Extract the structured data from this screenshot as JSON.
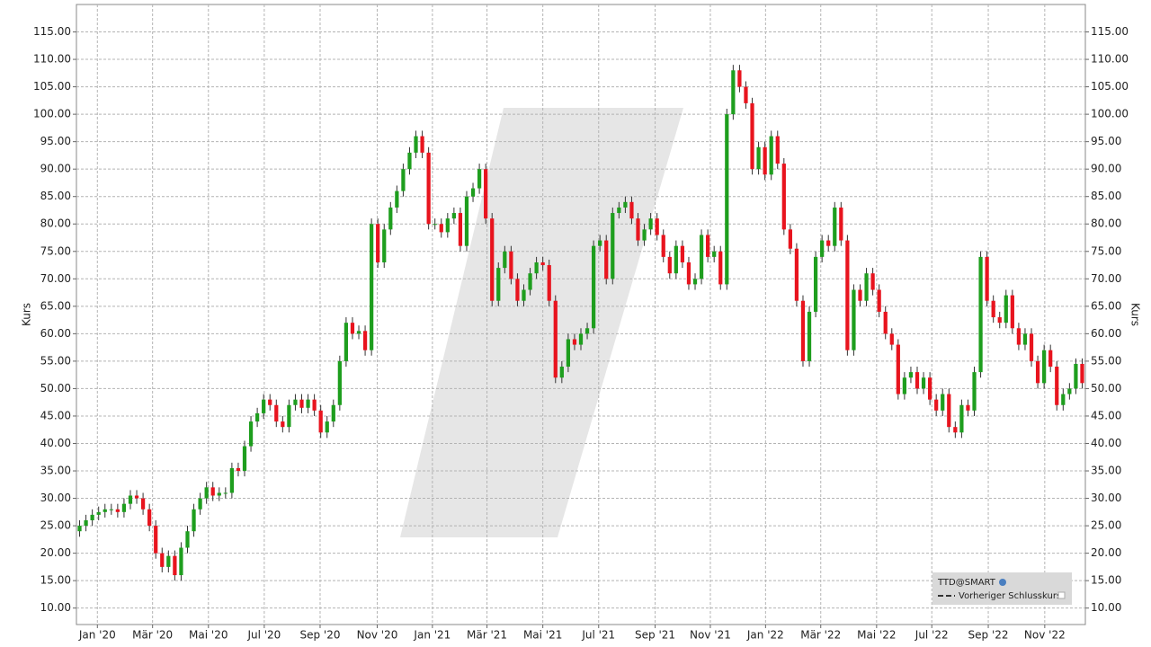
{
  "chart_data": {
    "type": "candlestick",
    "y_label": "Kurs",
    "y2_label": "Kurs",
    "legend": {
      "symbol": "TTD@SMART",
      "previous_close": "Vorheriger Schlusskurs",
      "corner": "lower right"
    },
    "up_color": "#1e9e1e",
    "down_color": "#e8141e",
    "grid": true,
    "xlim": [
      -0.5,
      158.5
    ],
    "ylim": [
      7,
      120
    ],
    "yticks": [
      {
        "value": 10,
        "label": "10.00"
      },
      {
        "value": 15,
        "label": "15.00"
      },
      {
        "value": 20,
        "label": "20.00"
      },
      {
        "value": 25,
        "label": "25.00"
      },
      {
        "value": 30,
        "label": "30.00"
      },
      {
        "value": 35,
        "label": "35.00"
      },
      {
        "value": 40,
        "label": "40.00"
      },
      {
        "value": 45,
        "label": "45.00"
      },
      {
        "value": 50,
        "label": "50.00"
      },
      {
        "value": 55,
        "label": "55.00"
      },
      {
        "value": 60,
        "label": "60.00"
      },
      {
        "value": 65,
        "label": "65.00"
      },
      {
        "value": 70,
        "label": "70.00"
      },
      {
        "value": 75,
        "label": "75.00"
      },
      {
        "value": 80,
        "label": "80.00"
      },
      {
        "value": 85,
        "label": "85.00"
      },
      {
        "value": 90,
        "label": "90.00"
      },
      {
        "value": 95,
        "label": "95.00"
      },
      {
        "value": 100,
        "label": "100.00"
      },
      {
        "value": 105,
        "label": "105.00"
      },
      {
        "value": 110,
        "label": "110.00"
      },
      {
        "value": 115,
        "label": "115.00"
      }
    ],
    "xticks": [
      {
        "value": 2.8,
        "label": "Jan '20"
      },
      {
        "value": 11.5,
        "label": "Mär '20"
      },
      {
        "value": 20.3,
        "label": "Mai '20"
      },
      {
        "value": 29.1,
        "label": "Jul '20"
      },
      {
        "value": 37.9,
        "label": "Sep '20"
      },
      {
        "value": 46.9,
        "label": "Nov '20"
      },
      {
        "value": 55.6,
        "label": "Jan '21"
      },
      {
        "value": 64.2,
        "label": "Mär '21"
      },
      {
        "value": 73,
        "label": "Mai '21"
      },
      {
        "value": 81.8,
        "label": "Jul '21"
      },
      {
        "value": 90.7,
        "label": "Sep '21"
      },
      {
        "value": 99.4,
        "label": "Nov '21"
      },
      {
        "value": 108.1,
        "label": "Jan '22"
      },
      {
        "value": 116.8,
        "label": "Mär '22"
      },
      {
        "value": 125.6,
        "label": "Mai '22"
      },
      {
        "value": 134.3,
        "label": "Jul '22"
      },
      {
        "value": 143.2,
        "label": "Sep '22"
      },
      {
        "value": 152.1,
        "label": "Nov '22"
      }
    ],
    "open": [
      24,
      25,
      26,
      27,
      27.5,
      28,
      28,
      27.5,
      29,
      30.5,
      30,
      28,
      25,
      20,
      17.5,
      19.5,
      16,
      21,
      24,
      28,
      30,
      32,
      30.5,
      31,
      31,
      35.5,
      35,
      39.5,
      44,
      45.5,
      48,
      47,
      44,
      43,
      47,
      48,
      46.5,
      48,
      46,
      42,
      44,
      47,
      55,
      62,
      60,
      60.5,
      57,
      80,
      73,
      79,
      83,
      86,
      90,
      93,
      96,
      93,
      80,
      80,
      78.5,
      81,
      82,
      76,
      85,
      86.5,
      90,
      81,
      66,
      72,
      75,
      70,
      66,
      68,
      71,
      73,
      72.5,
      66,
      52,
      54,
      59,
      58,
      60,
      61,
      76,
      77,
      70,
      82,
      83,
      84,
      81,
      77,
      79,
      81,
      78,
      74,
      71,
      76,
      73,
      69,
      70,
      78,
      74,
      75,
      69,
      100,
      108,
      105,
      102,
      90,
      94,
      89,
      96,
      91,
      79,
      75.5,
      66,
      55,
      64,
      74,
      77,
      76,
      83,
      77,
      57,
      68,
      66,
      71,
      68,
      64,
      60,
      58,
      49,
      52,
      53,
      50,
      52,
      48,
      46,
      49,
      43,
      42,
      47,
      46,
      53,
      74,
      66,
      63,
      62,
      67,
      61,
      58,
      60,
      55,
      51,
      57,
      54,
      47,
      49,
      50,
      54.5
    ],
    "high": [
      26,
      27,
      28,
      28.5,
      29,
      29,
      29,
      30,
      31.5,
      31.5,
      31,
      29,
      26,
      21,
      20.5,
      20.5,
      22,
      25,
      29,
      31,
      33,
      33,
      32,
      32,
      36.5,
      36.5,
      40.5,
      45,
      46.5,
      49,
      49,
      48,
      45,
      48,
      49,
      49,
      49,
      49,
      47,
      45,
      48,
      56,
      63,
      63,
      61.5,
      61.5,
      81,
      81,
      80,
      84,
      87,
      91,
      94,
      97,
      97,
      94,
      81,
      81,
      82,
      83,
      83,
      86,
      87.5,
      91,
      91,
      82,
      73,
      76,
      76,
      71,
      69,
      72,
      74,
      74,
      73.5,
      67,
      55,
      60,
      60,
      61,
      62,
      77,
      78,
      78,
      83,
      84,
      85,
      85,
      82,
      80,
      82,
      82,
      79,
      75,
      77,
      77,
      74,
      71,
      79,
      79,
      76,
      76,
      101,
      109,
      109,
      106,
      103,
      95,
      95,
      97,
      97,
      92,
      80,
      76.5,
      67,
      65,
      75,
      78,
      78,
      84,
      84,
      78,
      69,
      69,
      72,
      72,
      69,
      65,
      61,
      59,
      53,
      54,
      54,
      53,
      53,
      49,
      50,
      50,
      44,
      48,
      48,
      54,
      75,
      75,
      67,
      64,
      68,
      68,
      62,
      61,
      61,
      56,
      58,
      58,
      55,
      50,
      51,
      55.5,
      55.5
    ],
    "low": [
      23,
      24,
      25,
      26,
      26.5,
      27,
      26.5,
      26.5,
      28,
      29,
      27,
      24,
      19,
      16.5,
      16.5,
      15,
      15,
      20,
      23,
      27,
      29,
      29.5,
      29.5,
      30,
      30,
      34,
      34,
      38.5,
      43,
      44.5,
      46,
      43,
      42,
      42,
      46,
      45.5,
      45.5,
      45,
      41,
      41,
      43,
      46,
      54,
      59,
      59,
      56,
      56,
      72,
      72,
      78,
      82,
      85,
      89,
      92,
      92,
      79,
      79,
      77.5,
      77.5,
      80,
      75,
      75,
      84,
      85.5,
      80,
      65,
      65,
      71,
      69,
      65,
      65,
      67,
      70,
      71.5,
      65,
      51,
      51,
      53,
      57,
      57,
      59,
      60,
      75,
      69,
      69,
      81,
      82,
      80,
      76,
      76,
      78,
      77,
      73,
      70,
      70,
      72,
      68,
      68,
      69,
      73,
      73,
      68,
      68,
      99,
      104,
      101,
      89,
      89,
      88,
      88,
      90,
      78,
      74.5,
      65,
      54,
      54,
      63,
      73,
      75,
      75,
      76,
      56,
      56,
      65,
      65,
      67,
      63,
      59,
      57,
      48,
      48,
      51,
      49,
      49,
      47,
      45,
      45,
      42,
      41,
      41,
      45,
      45,
      52,
      65,
      62,
      61,
      61,
      60,
      57,
      57,
      54,
      50,
      50,
      53,
      46,
      46,
      48,
      49,
      50
    ],
    "close": [
      25,
      26,
      27,
      27.5,
      28,
      28,
      27.5,
      29,
      30.5,
      30,
      28,
      25,
      20,
      17.5,
      19.5,
      16,
      21,
      24,
      28,
      30,
      32,
      30.5,
      31,
      31,
      35.5,
      35,
      39.5,
      44,
      45.5,
      48,
      47,
      44,
      43,
      47,
      48,
      46.5,
      48,
      46,
      42,
      44,
      47,
      55,
      62,
      60,
      60.5,
      57,
      80,
      73,
      79,
      83,
      86,
      90,
      93,
      96,
      93,
      80,
      80,
      78.5,
      81,
      82,
      76,
      85,
      86.5,
      90,
      81,
      66,
      72,
      75,
      70,
      66,
      68,
      71,
      73,
      72.5,
      66,
      52,
      54,
      59,
      58,
      60,
      61,
      76,
      77,
      70,
      82,
      83,
      84,
      81,
      77,
      79,
      81,
      78,
      74,
      71,
      76,
      73,
      69,
      70,
      78,
      74,
      75,
      69,
      100,
      108,
      105,
      102,
      90,
      94,
      89,
      96,
      91,
      79,
      75.5,
      66,
      55,
      64,
      74,
      77,
      76,
      83,
      77,
      57,
      68,
      66,
      71,
      68,
      64,
      60,
      58,
      49,
      52,
      53,
      50,
      52,
      48,
      46,
      49,
      43,
      42,
      47,
      46,
      53,
      74,
      66,
      63,
      62,
      67,
      61,
      58,
      60,
      55,
      51,
      57,
      54,
      47,
      49,
      50,
      54.5,
      51
    ]
  }
}
